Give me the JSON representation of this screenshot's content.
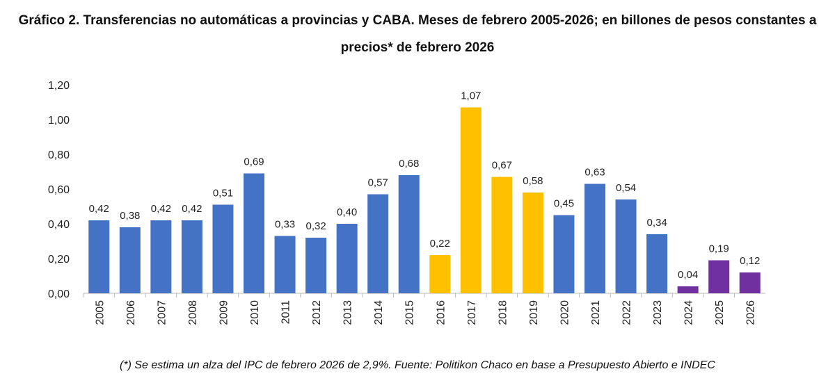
{
  "chart_data": {
    "type": "bar",
    "title": "Gráfico 2. Transferencias no automáticas a provincias y CABA. Meses de febrero 2005-2026; en billones de pesos constantes a precios* de febrero 2026",
    "note": "(*) Se estima un alza del IPC de febrero 2026 de 2,9%. Fuente: Politikon Chaco en base a Presupuesto Abierto e INDEC",
    "categories": [
      "2005",
      "2006",
      "2007",
      "2008",
      "2009",
      "2010",
      "2011",
      "2012",
      "2013",
      "2014",
      "2015",
      "2016",
      "2017",
      "2018",
      "2019",
      "2020",
      "2021",
      "2022",
      "2023",
      "2024",
      "2025",
      "2026"
    ],
    "values": [
      0.42,
      0.38,
      0.42,
      0.42,
      0.51,
      0.69,
      0.33,
      0.32,
      0.4,
      0.57,
      0.68,
      0.22,
      1.07,
      0.67,
      0.58,
      0.45,
      0.63,
      0.54,
      0.34,
      0.04,
      0.19,
      0.12
    ],
    "labels": [
      "0,42",
      "0,38",
      "0,42",
      "0,42",
      "0,51",
      "0,69",
      "0,33",
      "0,32",
      "0,40",
      "0,57",
      "0,68",
      "0,22",
      "1,07",
      "0,67",
      "0,58",
      "0,45",
      "0,63",
      "0,54",
      "0,34",
      "0,04",
      "0,19",
      "0,12"
    ],
    "colors": [
      "#4472C4",
      "#4472C4",
      "#4472C4",
      "#4472C4",
      "#4472C4",
      "#4472C4",
      "#4472C4",
      "#4472C4",
      "#4472C4",
      "#4472C4",
      "#4472C4",
      "#FFC000",
      "#FFC000",
      "#FFC000",
      "#FFC000",
      "#4472C4",
      "#4472C4",
      "#4472C4",
      "#4472C4",
      "#7030A0",
      "#7030A0",
      "#7030A0"
    ],
    "ylim": [
      0,
      1.2
    ],
    "yticks": [
      "0,00",
      "0,20",
      "0,40",
      "0,60",
      "0,80",
      "1,00",
      "1,20"
    ],
    "grid": false,
    "xlabel": "",
    "ylabel": ""
  }
}
